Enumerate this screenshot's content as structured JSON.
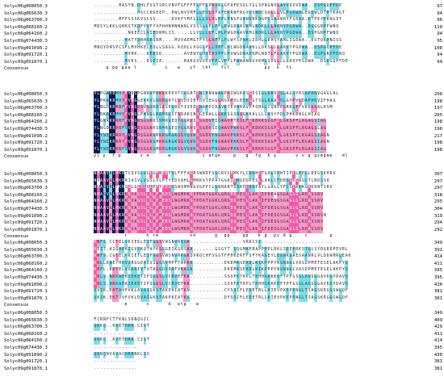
{
  "alignment": {
    "sequence_names": [
      "Solyc06g008050.3",
      "Solyc06g065630.3",
      "Solyc06g063700.3",
      "Solyc06g068160.2",
      "Solyc06g064160.2",
      "Solyc09g074430.3",
      "Solyc09g091090.2",
      "Solyc09g091720.1",
      "Solyc09g091870.1"
    ],
    "consensus_label": "Consensus",
    "colors": {
      "identical": "#0b1a4f",
      "high": "#ec5fa8",
      "medium": "#f39bc6",
      "low": "#7fdce8"
    },
    "blocks": [
      {
        "rows": [
          "........MASYN.DHLFSSTSRCVNVFGFFFFLPFLPVVNLGFAFESQLYGLSPNGNVLAYVQVVDWA..DSPGQPFDE",
          "..............MGCCKKEEP..KWLNVVMFLLEVLVFAFEPRNFRGYVSNDCQALLLVLPGDWALEGSWLDTPYKAGT",
          "........MFFSSSKVSLSS.....DVKFYMFLLLLVLVLPFLPNGFGNNVHKDGPLSAAWRYFGDAA.DTPEYPKNGIT",
          "MDSYLKKLQNKSTKDFYVFYVPHHNHNNWNLVVSSLLFLPFLPWGDNAVKMLNDKLLLAKNYPGDWA..DSGGRPFWNQ",
          "...........NKEECLVIEDNMLIS.....LLYLLLLFLPLPWGDNAVKMLNDRLLLAKNYPGDWA..DSPGRPFWNQ",
          "..........MATYDNHVEQRM....MVVAEMGTFYQLVPFLPLWYSPNKLIDHLLKHSYAMLIGDWA..DSTQRPNISS",
          "MNQYDNSPCSFLMVHKELEQLLSAGG.KQDLLVGGLFLLVPFLPLWGDNAVKLLDKSLLLAKVYPGDWA..DSPGQPFDE",
          "..........MVRK...KEEID.......AVEWYLHVEVVPFLPVWGDNAVKMLNDTLFLAKVYPGDWA..DSPGRPFDNQ",
          "..........MVKS...EQEIE.......RAKGVVVEVFPLVPFLPNWANNGVKMLSDGLLLAKVYPGDWA..DSPGQPFDE"
        ],
        "numbers": [
          "97",
          "94",
          "96",
          "110",
          "94",
          "95",
          "108",
          "94",
          "94"
        ],
        "consensus": "    g pp gaa l         c   w   yf  lhl   fcl           py  k  fi"
      },
      {
        "rows": [
          "YLPGAKRMHYFVDGPGNRVFRKRKEKVTIGGRTSNIPNAWAKPVIWGKESGDSIGLKRVLSLAGSYRSAPHKVGAGLAL",
          "YLPKAKRMHYFVNGGEKKVLRKRGKTLSVDSIEFDVIEGGGNGKPVLEEKGGTSGLKRALSLGYPVLDAPHKVIFHAG",
          "YLNGDKRRRFFVNGRSVGGRRSRSEGRKFIIEDSNAPPIDAVETEVNRAVPFQMALCQRPEGRKSFFVKDGSALKSM",
          "YLDKAKRMHYFVNGLPKNGLRRMRGSTSDAKSNSGERWLLGKESGSNSGKKALLLGKSYFDLPHKRNGLHIAG",
          "YLGNRKRRRFFVNGRSGGKKSRMRGEQYGGRVQSSGDVFIQWAVPTKSLFGKDKKSGGFLLGKSPFLRGAGSIAG",
          "YLNGDKRRRFVVNGRSGGKKSRMRGEQYGGRVQSSGDVSIQWAVPKKSLFGKDKKSGGFLLGKSPFLRGAGSLAG",
          "YLYNEKRRRYFVNGRSGGKGMKRGRGKSGVQVKSSGDVFNGWAVPKKSLFGKDKKSGGFLLGKSPFLRGAGSIAGN",
          "YLYNEKRRRYFVNGRSGGKGMKRGRGKSGVQVKSSGDVFNGWAVPKKSLFGKDKKSGGFLLGKSPFLRGAGSIAGN",
          "YLYNEKRRRFVVNGRSGGKGMKRGRGKSGVQVKSSGDVFNGWAVPKKSLFGKDKKSGGFLLGKSPFLRGAGSIAG"
        ],
        "numbers": [
          "206",
          "198",
          "197",
          "205",
          "198",
          "196",
          "217",
          "198",
          "198"
        ],
        "consensus": "yl y  f p      v a      w          i atge    p   g  fg  h y      v v g gsmgme   dl"
      },
      {
        "rows": [
          "NHAAVKLMKRTCQVSLVLLGFNEDFSLFPFAGRSWNDFSGCRVLDMKYLCDDHLTGALYFHTIFLLKELLEEGSKHRV",
          "NVAAVGLMKRRIASVLVGSLVLPTYEDSAHLGMRKGYPPATGGKIQRGDQPESLLAKLIFDESGDGAGLTLRDSSQ",
          "NHAGVKLTKRSGLGGSLVLPFYEDSSSWQMHNGVGPFCLGNNARTDRKFLDDPAYLGALLYFSSLAKKGAKDNTSRV",
          "NHAGVKLMKRKGVAGSLILVFHEDSLWGMRKGYPDATGGKLQRGDQPESLLAKLIFDEAGSGAGLGLRDASSRV",
          "NHAAVGLMKRKGVAGSLILVFHEDSLWGMRKGYPDATGGKLQRGDQPESLLAKLIFDESGSGAGLGLRDASSRV",
          "NHAAVGLMKRKGVAGSLILVFHEDSLWGMRKGYPDATGGKLQRGDQPESLLAKLIFDESGSGAGLGLRDASSRV",
          "NHAAVGLMKRKGVAGSLILVFHEDSLWGMRKGYPDATGGKLQRGDQPESLLAKLIFDESGSGAGLGLRDASSRVN",
          "NHAAVGLMKRKGVAGSLILVFHEDSLWGMRKGYPDATGGKLQRGDQPESLLAKLIFDESGSGAGLGLRDASSRV",
          "NHAAVGLMKRKGVAGSLILVFHEDSLWGMRKGYPDATGGKLQRGDQPESLLAKLIFDESGSGAGLGLRDASSRV"
        ],
        "numbers": [
          "307",
          "297",
          "297",
          "318",
          "295",
          "304",
          "319",
          "294",
          "292"
        ],
        "consensus": "          r      h re          vd      g  gp    gp   k g  pv d g    i       p"
      },
      {
        "rows": [
          "KRFS.CCTELVKIEKLEIFGGSVWSNVRKGK.................VRKCSI.......................",
          "KEIT.KIQAEKIGVEKQTAYKSLGEIKGRSKK.......GSGYT.SQGMKPRAPPPPLRKLSEEPRKSTGLSYDGREPEVRL",
          "KRFS.CGTELVKIETLEIFGGSVWSNVRKGKQVRQCHFSGGTFPHKERFFSFYKAGEYLEGNKGAESAANRLVLDDAMRLEAK",
          "KRLLKNEYHEVIRGGEAEVIGGSVMPFTWRKK..........EKEMKSEKDLKIKPPPYNGNNGLVASDPMETESELAKPYQ",
          "KRFL.KKTELVQEKIVTVTAGGDVRRFVKKGK..........EKEMKSEKDLKIKPPPYNGNNGLVASDPMETESELAKPYQ",
          "KRLS.NKKAEKIEKETIFSGGSLVCRVEFKK...........SSVFKTKPLTKHHGKKKEFTPFGSGLAGSGGAVKGYDAVQ",
          "KRLS.NKKAEKIEKETIFSGGSLVCRVEFKK...........SSVFKTKPLTKHHGKKKEFTPFGSGLAGSGGAVKGYDAVQ",
          "SVIK.EKTAVFVKLAVAIGKSTAKPKIATKN...........CYSSIFLEDETRLLKIEVPKEPPNGLTIAGSKRGGSWLQF",
          "SKIK.EKTVVFVKLDVAIGKSTAKPKIATKG...........DYSSIFLEDETRLLKIEVPKEPPNGLTIAGSKRGGSWLQF"
        ],
        "numbers": [
          "349",
          "391",
          "414",
          "411",
          "395",
          "395",
          "430",
          "381",
          "381"
        ],
        "consensus": "          e      s      d  atg   w"
      },
      {
        "rows": [
          "..............",
          "FCRNFCTTKNLSDNQGIC",
          "QKKQ..KVETHRR.CIST",
          "..............",
          "QKKQ..KVETHRR.CIST",
          "..............",
          "QKNQNVAVACHRRNKLSS",
          "..............",
          ".............."
        ],
        "numbers": [
          "349",
          "409",
          "429",
          "411",
          "414",
          "395",
          "430",
          "381",
          "381"
        ],
        "consensus": ""
      }
    ]
  }
}
